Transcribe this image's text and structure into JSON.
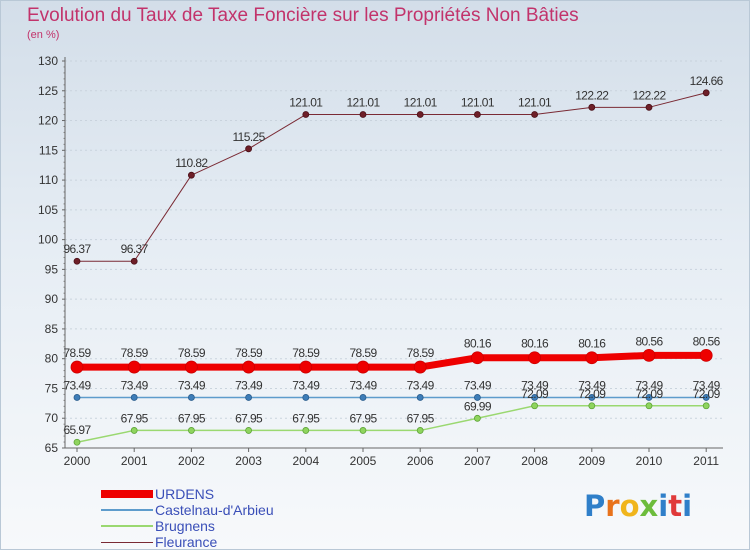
{
  "header": {
    "title": "Evolution du Taux de Taxe Foncière sur les Propriétés Non Bâties",
    "unit": "(en %)"
  },
  "logo": {
    "text": "Proxiti"
  },
  "chart_data": {
    "type": "line",
    "title": "Evolution du Taux de Taxe Foncière sur les Propriétés Non Bâties",
    "ylabel": "(en %)",
    "xlabel": "",
    "ylim": [
      65,
      130
    ],
    "yticks": [
      65,
      70,
      75,
      80,
      85,
      90,
      95,
      100,
      105,
      110,
      115,
      120,
      125,
      130
    ],
    "x": [
      "2000",
      "2001",
      "2002",
      "2003",
      "2004",
      "2005",
      "2006",
      "2007",
      "2008",
      "2009",
      "2010",
      "2011"
    ],
    "legend_position": "bottom-left",
    "series": [
      {
        "name": "URDENS",
        "color": "#ee0000",
        "values": [
          78.59,
          78.59,
          78.59,
          78.59,
          78.59,
          78.59,
          78.59,
          80.16,
          80.16,
          80.16,
          80.56,
          80.56
        ],
        "labels": [
          "78.59",
          "78.59",
          "78.59",
          "78.59",
          "78.59",
          "78.59",
          "78.59",
          "80.16",
          "80.16",
          "80.16",
          "80.56",
          "80.56"
        ]
      },
      {
        "name": "Castelnau-d'Arbieu",
        "color": "#5d9ccc",
        "values": [
          73.49,
          73.49,
          73.49,
          73.49,
          73.49,
          73.49,
          73.49,
          73.49,
          73.49,
          73.49,
          73.49,
          73.49
        ],
        "labels": [
          "73.49",
          "73.49",
          "73.49",
          "73.49",
          "73.49",
          "73.49",
          "73.49",
          "73.49",
          "73.49",
          "73.49",
          "73.49",
          "73.49"
        ]
      },
      {
        "name": "Brugnens",
        "color": "#9ad870",
        "values": [
          65.97,
          67.95,
          67.95,
          67.95,
          67.95,
          67.95,
          67.95,
          69.99,
          72.09,
          72.09,
          72.09,
          72.09
        ],
        "labels": [
          "65.97",
          "67.95",
          "67.95",
          "67.95",
          "67.95",
          "67.95",
          "67.95",
          "69.99",
          "72.09",
          "72.09",
          "72.09",
          "72.09"
        ]
      },
      {
        "name": "Fleurance",
        "color": "#7a2a34",
        "values": [
          96.37,
          96.37,
          110.82,
          115.25,
          121.01,
          121.01,
          121.01,
          121.01,
          121.01,
          122.22,
          122.22,
          124.66
        ],
        "labels": [
          "96.37",
          "96.37",
          "110.82",
          "115.25",
          "121.01",
          "121.01",
          "121.01",
          "121.01",
          "121.01",
          "122.22",
          "122.22",
          "124.66"
        ]
      }
    ]
  }
}
